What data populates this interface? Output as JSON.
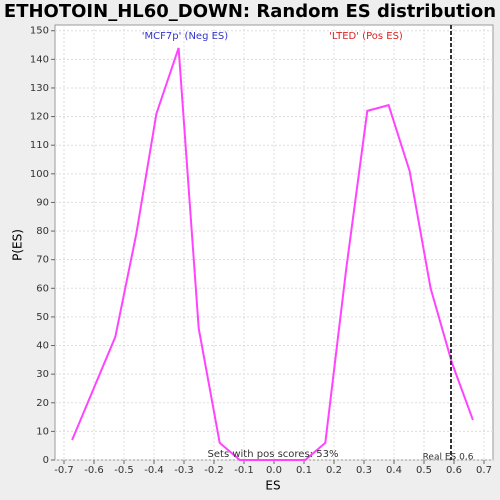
{
  "chart_data": {
    "type": "line",
    "title": "ETHOTOIN_HL60_DOWN: Random ES distribution",
    "x_label": "ES",
    "y_label": "P(ES)",
    "x": [
      -0.673,
      -0.529,
      -0.459,
      -0.392,
      -0.318,
      -0.251,
      -0.181,
      -0.114,
      0.104,
      0.171,
      0.241,
      0.311,
      0.382,
      0.452,
      0.522,
      0.593,
      0.663
    ],
    "series": [
      {
        "color": "#ff44ff",
        "values": [
          7,
          43,
          79,
          121,
          144,
          46,
          6,
          0,
          0,
          6,
          67,
          122,
          124,
          101,
          60,
          34,
          14
        ]
      }
    ],
    "xlim": [
      -0.73,
      0.73
    ],
    "ylim": [
      0,
      152
    ],
    "xticks": [
      -0.7,
      -0.6,
      -0.5,
      -0.4,
      -0.3,
      -0.2,
      -0.1,
      {
        "value": 0,
        "label": "0.0"
      },
      0.1,
      0.2,
      0.3,
      0.4,
      0.5,
      0.6,
      0.7
    ],
    "yticks": [
      0,
      10,
      20,
      30,
      40,
      50,
      60,
      70,
      80,
      90,
      100,
      110,
      120,
      130,
      140,
      150
    ],
    "grid": true,
    "neg_label": {
      "text": "'MCF7p' (Neg ES)",
      "color": "#3333cc"
    },
    "pos_label": {
      "text": "'LTED' (Pos ES)",
      "color": "#dd2222"
    },
    "footnote": "Sets with pos scores: 53%",
    "real_es": {
      "value": 0.59,
      "label": "Real ES 0.6"
    }
  }
}
